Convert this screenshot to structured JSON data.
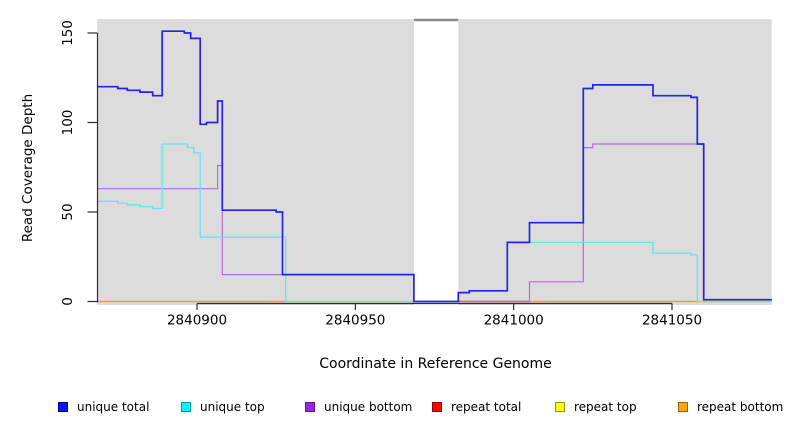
{
  "figure_type": "read-coverage-step-plot",
  "chart_data": {
    "type": "line",
    "subtype": "step",
    "title": "",
    "xlabel": "Coordinate in Reference Genome",
    "ylabel": "Read Coverage Depth",
    "xlim": [
      2840868.5,
      2841081.5
    ],
    "ylim": [
      0,
      158
    ],
    "x_ticks": [
      {
        "value": 2840900,
        "label": "2840900"
      },
      {
        "value": 2840950,
        "label": "2840950"
      },
      {
        "value": 2841000,
        "label": "2841000"
      },
      {
        "value": 2841050,
        "label": "2841050"
      }
    ],
    "y_ticks": [
      {
        "value": 0,
        "label": "0"
      },
      {
        "value": 50,
        "label": "50"
      },
      {
        "value": 100,
        "label": "100"
      },
      {
        "value": 150,
        "label": "150"
      }
    ],
    "grid": false,
    "legend_position": "bottom",
    "shaded_regions": [
      {
        "from": 2840868.5,
        "to": 2840968.5,
        "color": "#dcdcdc"
      },
      {
        "from": 2840982.5,
        "to": 2841081.5,
        "color": "#dcdcdc"
      }
    ],
    "gap_top_marker": {
      "from": 2840968.5,
      "to": 2840982.5,
      "color": "#8c8c8c"
    },
    "baseline_segments": [
      {
        "from": 2840868.5,
        "to": 2840928,
        "value": 0,
        "color": "#ff9d1c"
      },
      {
        "from": 2840928,
        "to": 2840968.5,
        "value": 0,
        "color": "#a0e4a8"
      },
      {
        "from": 2840982.5,
        "to": 2841005,
        "value": 0,
        "color": "#cc4a55"
      },
      {
        "from": 2841005,
        "to": 2841081.5,
        "value": 0,
        "color": "#ff9d1c"
      }
    ],
    "series": [
      {
        "name": "unique total",
        "color": "#2323e6",
        "width": 1.7,
        "step_points": [
          [
            2840868.5,
            120
          ],
          [
            2840875,
            119
          ],
          [
            2840878,
            118
          ],
          [
            2840882,
            117
          ],
          [
            2840886,
            115
          ],
          [
            2840889,
            151
          ],
          [
            2840896,
            150
          ],
          [
            2840898,
            147
          ],
          [
            2840901,
            99
          ],
          [
            2840903,
            100
          ],
          [
            2840906.5,
            112
          ],
          [
            2840908,
            51
          ],
          [
            2840925,
            50
          ],
          [
            2840927,
            15
          ],
          [
            2840968.5,
            0
          ],
          [
            2840982.5,
            5
          ],
          [
            2840986,
            6
          ],
          [
            2840998,
            33
          ],
          [
            2841005,
            44
          ],
          [
            2841022,
            119
          ],
          [
            2841025,
            121
          ],
          [
            2841044,
            115
          ],
          [
            2841056,
            114
          ],
          [
            2841058,
            88
          ],
          [
            2841060,
            1
          ],
          [
            2841081.5,
            1
          ]
        ]
      },
      {
        "name": "unique top",
        "color": "#63e5ee",
        "width": 1.3,
        "step_points": [
          [
            2840868.5,
            56
          ],
          [
            2840875,
            55
          ],
          [
            2840878,
            54
          ],
          [
            2840882,
            53
          ],
          [
            2840886,
            52
          ],
          [
            2840889,
            88
          ],
          [
            2840897,
            86
          ],
          [
            2840899,
            83
          ],
          [
            2840901,
            36
          ],
          [
            2840928,
            0
          ],
          [
            2840982.5,
            5
          ],
          [
            2840986,
            6
          ],
          [
            2840998,
            33
          ],
          [
            2841044,
            27
          ],
          [
            2841056,
            26
          ],
          [
            2841058,
            0
          ],
          [
            2841081.5,
            0
          ]
        ]
      },
      {
        "name": "unique bottom",
        "color": "#b36ddb",
        "width": 1.2,
        "step_points": [
          [
            2840868.5,
            63
          ],
          [
            2840906.5,
            76
          ],
          [
            2840908,
            15
          ],
          [
            2840968.5,
            0
          ],
          [
            2841005,
            11
          ],
          [
            2841022,
            86
          ],
          [
            2841025,
            88
          ],
          [
            2841060,
            1
          ],
          [
            2841081.5,
            1
          ]
        ]
      },
      {
        "name": "repeat total",
        "color": "#cc4a55",
        "width": 1.2,
        "step_points": [
          [
            2840868.5,
            0
          ],
          [
            2841081.5,
            0
          ]
        ]
      },
      {
        "name": "repeat top",
        "color": "#ffff00",
        "width": 1.2,
        "step_points": [
          [
            2840868.5,
            0
          ],
          [
            2841081.5,
            0
          ]
        ]
      },
      {
        "name": "repeat bottom",
        "color": "#ff9d1c",
        "width": 1.5,
        "step_points": [
          [
            2840868.5,
            0
          ],
          [
            2841081.5,
            0
          ]
        ]
      }
    ]
  },
  "legend": {
    "items": [
      {
        "label": "unique total",
        "fill": "#0d0dff",
        "border": "#00009a"
      },
      {
        "label": "unique top",
        "fill": "#00f5ff",
        "border": "#009aa8"
      },
      {
        "label": "unique bottom",
        "fill": "#9729dd",
        "border": "#6a0fa0"
      },
      {
        "label": "repeat total",
        "fill": "#ff0505",
        "border": "#9a0000"
      },
      {
        "label": "repeat top",
        "fill": "#ffff00",
        "border": "#9a9a00"
      },
      {
        "label": "repeat bottom",
        "fill": "#ffa510",
        "border": "#a06000"
      }
    ]
  }
}
